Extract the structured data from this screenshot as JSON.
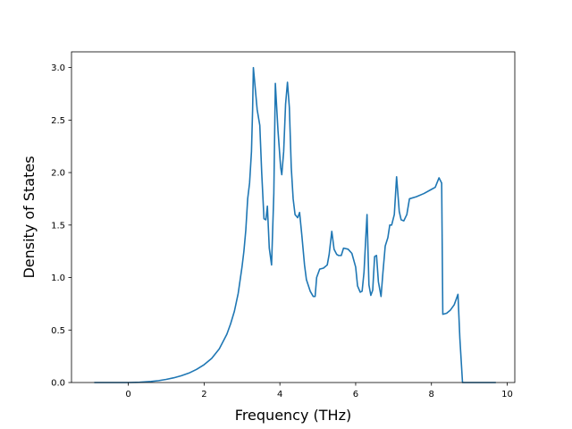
{
  "chart_data": {
    "type": "line",
    "title": "",
    "xlabel": "Frequency (THz)",
    "ylabel": "Density of States",
    "xlim": [
      -1.5,
      10.2
    ],
    "ylim": [
      0,
      3.15
    ],
    "xticks": [
      0,
      2,
      4,
      6,
      8,
      10
    ],
    "xtick_labels": [
      "0",
      "2",
      "4",
      "6",
      "8",
      "10"
    ],
    "yticks": [
      0,
      0.5,
      1.0,
      1.5,
      2.0,
      2.5,
      3.0
    ],
    "ytick_labels": [
      "0.0",
      "0.5",
      "1.0",
      "1.5",
      "2.0",
      "2.5",
      "3.0"
    ],
    "grid": false,
    "legend": "none",
    "series": [
      {
        "color": "#1f77b4",
        "points": [
          [
            -0.9,
            0.0
          ],
          [
            -0.5,
            0.0
          ],
          [
            0.0,
            0.0
          ],
          [
            0.3,
            0.003
          ],
          [
            0.6,
            0.01
          ],
          [
            0.8,
            0.018
          ],
          [
            1.0,
            0.03
          ],
          [
            1.2,
            0.045
          ],
          [
            1.4,
            0.065
          ],
          [
            1.6,
            0.09
          ],
          [
            1.8,
            0.125
          ],
          [
            2.0,
            0.17
          ],
          [
            2.2,
            0.23
          ],
          [
            2.4,
            0.32
          ],
          [
            2.6,
            0.46
          ],
          [
            2.7,
            0.56
          ],
          [
            2.8,
            0.68
          ],
          [
            2.9,
            0.85
          ],
          [
            3.0,
            1.1
          ],
          [
            3.05,
            1.25
          ],
          [
            3.1,
            1.45
          ],
          [
            3.15,
            1.75
          ],
          [
            3.2,
            1.9
          ],
          [
            3.25,
            2.2
          ],
          [
            3.28,
            2.6
          ],
          [
            3.3,
            3.0
          ],
          [
            3.35,
            2.8
          ],
          [
            3.4,
            2.6
          ],
          [
            3.47,
            2.45
          ],
          [
            3.52,
            2.0
          ],
          [
            3.58,
            1.56
          ],
          [
            3.63,
            1.55
          ],
          [
            3.67,
            1.68
          ],
          [
            3.72,
            1.28
          ],
          [
            3.78,
            1.12
          ],
          [
            3.84,
            1.8
          ],
          [
            3.88,
            2.85
          ],
          [
            3.95,
            2.4
          ],
          [
            4.02,
            2.05
          ],
          [
            4.05,
            1.98
          ],
          [
            4.1,
            2.2
          ],
          [
            4.15,
            2.65
          ],
          [
            4.2,
            2.86
          ],
          [
            4.25,
            2.62
          ],
          [
            4.3,
            2.05
          ],
          [
            4.35,
            1.75
          ],
          [
            4.4,
            1.6
          ],
          [
            4.47,
            1.57
          ],
          [
            4.52,
            1.62
          ],
          [
            4.58,
            1.4
          ],
          [
            4.65,
            1.12
          ],
          [
            4.7,
            0.98
          ],
          [
            4.8,
            0.87
          ],
          [
            4.88,
            0.82
          ],
          [
            4.93,
            0.82
          ],
          [
            4.97,
            1.0
          ],
          [
            5.05,
            1.08
          ],
          [
            5.15,
            1.09
          ],
          [
            5.25,
            1.12
          ],
          [
            5.3,
            1.22
          ],
          [
            5.37,
            1.44
          ],
          [
            5.43,
            1.27
          ],
          [
            5.5,
            1.22
          ],
          [
            5.55,
            1.21
          ],
          [
            5.62,
            1.21
          ],
          [
            5.68,
            1.28
          ],
          [
            5.8,
            1.27
          ],
          [
            5.9,
            1.23
          ],
          [
            6.0,
            1.1
          ],
          [
            6.05,
            0.92
          ],
          [
            6.12,
            0.86
          ],
          [
            6.17,
            0.87
          ],
          [
            6.22,
            1.05
          ],
          [
            6.27,
            1.4
          ],
          [
            6.3,
            1.6
          ],
          [
            6.35,
            0.93
          ],
          [
            6.4,
            0.83
          ],
          [
            6.45,
            0.88
          ],
          [
            6.5,
            1.2
          ],
          [
            6.55,
            1.21
          ],
          [
            6.6,
            0.96
          ],
          [
            6.67,
            0.82
          ],
          [
            6.72,
            1.05
          ],
          [
            6.78,
            1.3
          ],
          [
            6.85,
            1.38
          ],
          [
            6.9,
            1.5
          ],
          [
            6.95,
            1.5
          ],
          [
            7.02,
            1.6
          ],
          [
            7.08,
            1.96
          ],
          [
            7.15,
            1.63
          ],
          [
            7.2,
            1.55
          ],
          [
            7.27,
            1.54
          ],
          [
            7.35,
            1.6
          ],
          [
            7.42,
            1.75
          ],
          [
            7.6,
            1.77
          ],
          [
            7.8,
            1.8
          ],
          [
            8.0,
            1.84
          ],
          [
            8.1,
            1.86
          ],
          [
            8.2,
            1.95
          ],
          [
            8.27,
            1.9
          ],
          [
            8.3,
            0.65
          ],
          [
            8.4,
            0.66
          ],
          [
            8.5,
            0.69
          ],
          [
            8.6,
            0.74
          ],
          [
            8.7,
            0.84
          ],
          [
            8.75,
            0.42
          ],
          [
            8.82,
            0.0
          ],
          [
            9.0,
            0.0
          ],
          [
            9.4,
            0.0
          ],
          [
            9.7,
            0.0
          ]
        ]
      }
    ]
  }
}
